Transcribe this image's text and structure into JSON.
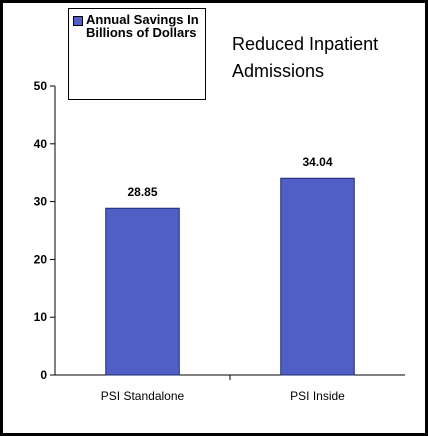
{
  "chart_data": {
    "type": "bar",
    "title": "Reduced Inpatient Admissions",
    "categories": [
      "PSI Standalone",
      "PSI Inside"
    ],
    "series": [
      {
        "name": "Annual Savings In Billions of Dollars",
        "color": "#4f5fc6",
        "values": [
          28.85,
          34.04
        ]
      }
    ],
    "ylim": [
      0,
      50
    ],
    "yticks": [
      0,
      10,
      20,
      30,
      40,
      50
    ],
    "grid": false,
    "legend": "top-left"
  }
}
